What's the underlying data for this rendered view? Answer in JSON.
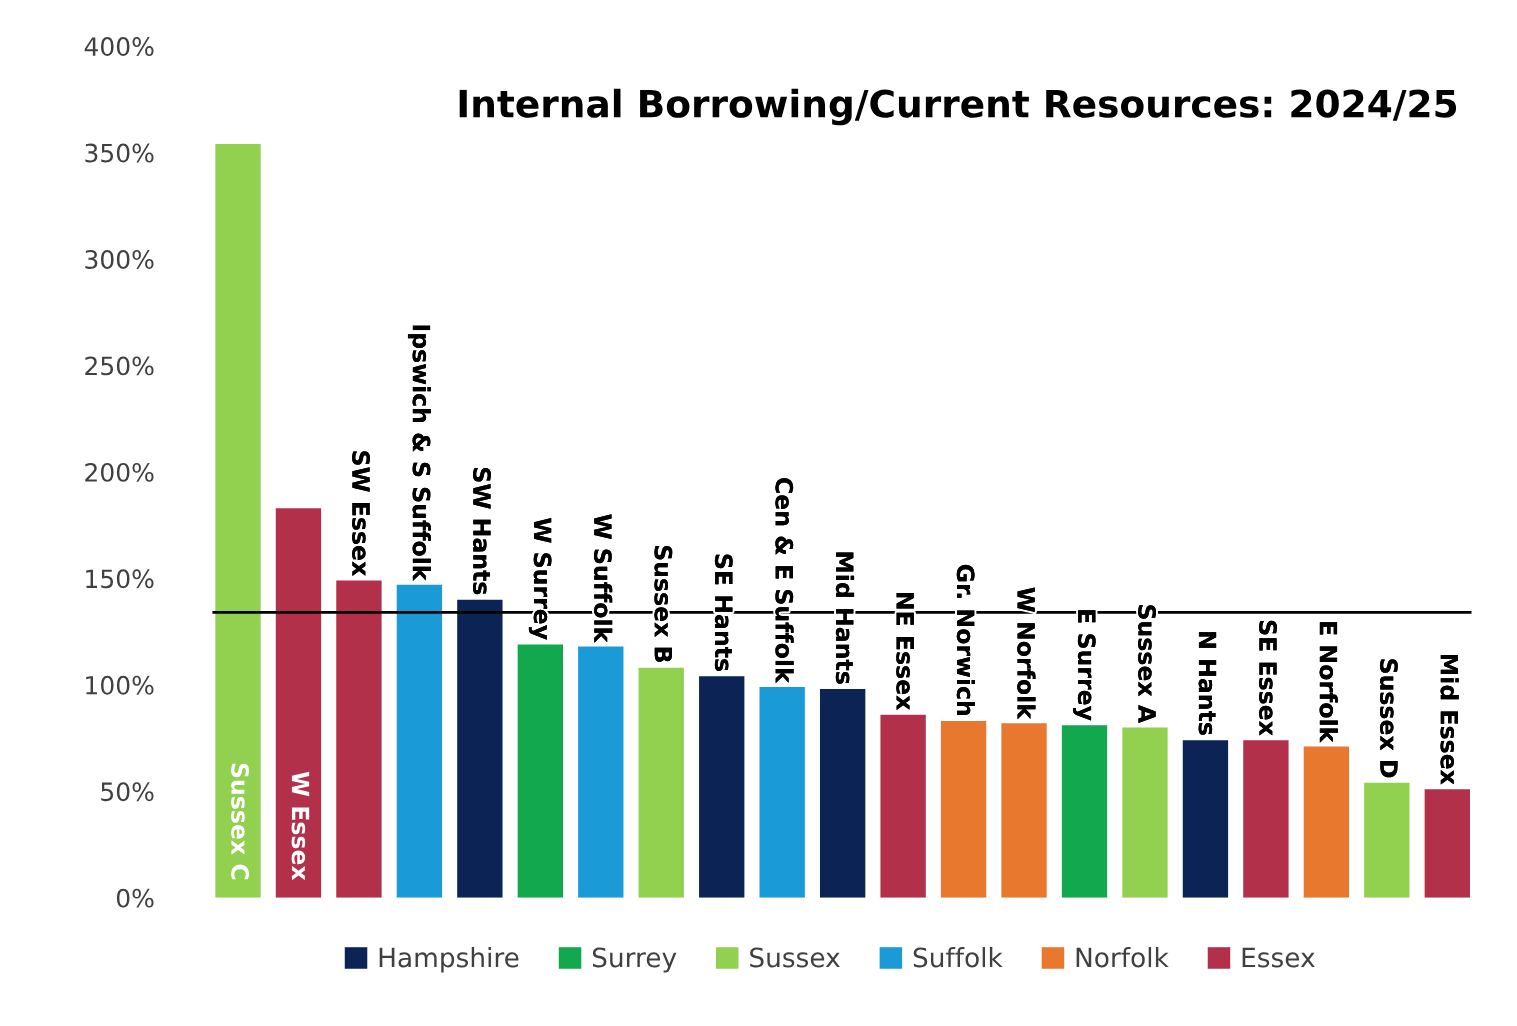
{
  "chart_data": {
    "type": "bar",
    "title": "Internal Borrowing/Current Resources: 2024/25",
    "categories": [
      "Sussex C",
      "W Essex",
      "SW Essex",
      "Ipswich & S Suffolk",
      "SW Hants",
      "W Surrey",
      "W Suffolk",
      "Sussex B",
      "SE Hants",
      "Cen & E Suffolk",
      "Mid Hants",
      "NE Essex",
      "Gr. Norwich",
      "W Norfolk",
      "E Surrey",
      "Sussex A",
      "N Hants",
      "SE Essex",
      "E Norfolk",
      "Sussex D",
      "Mid Essex"
    ],
    "series": [
      {
        "name": "Hampshire",
        "color": "#0b2455",
        "values": [
          null,
          null,
          null,
          null,
          140,
          null,
          null,
          null,
          104,
          null,
          98,
          null,
          null,
          null,
          null,
          null,
          74,
          null,
          null,
          null,
          null
        ]
      },
      {
        "name": "Surrey",
        "color": "#11a84e",
        "values": [
          null,
          null,
          null,
          null,
          null,
          119,
          null,
          null,
          null,
          null,
          null,
          null,
          null,
          null,
          81,
          null,
          null,
          null,
          null,
          null,
          null
        ]
      },
      {
        "name": "Sussex",
        "color": "#92d050",
        "values": [
          354,
          null,
          null,
          null,
          null,
          null,
          null,
          108,
          null,
          null,
          null,
          null,
          null,
          null,
          null,
          80,
          null,
          null,
          null,
          54,
          null
        ]
      },
      {
        "name": "Suffolk",
        "color": "#1a9bd7",
        "values": [
          null,
          null,
          null,
          147,
          null,
          null,
          118,
          null,
          null,
          99,
          null,
          null,
          null,
          null,
          null,
          null,
          null,
          null,
          null,
          null,
          null
        ]
      },
      {
        "name": "Norfolk",
        "color": "#e8782e",
        "values": [
          null,
          null,
          null,
          null,
          null,
          null,
          null,
          null,
          null,
          null,
          null,
          null,
          83,
          82,
          null,
          null,
          null,
          null,
          71,
          null,
          null
        ]
      },
      {
        "name": "Essex",
        "color": "#b3304a",
        "values": [
          null,
          183,
          149,
          null,
          null,
          null,
          null,
          null,
          null,
          null,
          null,
          86,
          null,
          null,
          null,
          null,
          null,
          74,
          null,
          null,
          51
        ]
      }
    ],
    "ylim": [
      0,
      400
    ],
    "yticks": [
      {
        "value": 0,
        "label": "0%"
      },
      {
        "value": 50,
        "label": "50%"
      },
      {
        "value": 100,
        "label": "100%"
      },
      {
        "value": 150,
        "label": "150%"
      },
      {
        "value": 200,
        "label": "200%"
      },
      {
        "value": 250,
        "label": "250%"
      },
      {
        "value": 300,
        "label": "300%"
      },
      {
        "value": 350,
        "label": "350%"
      },
      {
        "value": 400,
        "label": "400%"
      }
    ],
    "ref_lines": [
      {
        "axis": "y",
        "value": 134,
        "color": "#000000"
      }
    ],
    "grid": false,
    "legend": "bottom"
  }
}
